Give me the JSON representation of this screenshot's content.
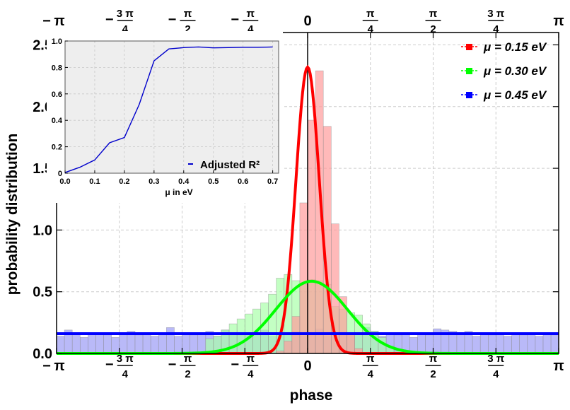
{
  "chart_data": [
    {
      "type": "bar",
      "title": "",
      "xlabel": "phase",
      "ylabel": "probability distribution",
      "xlim": [
        -3.1416,
        3.1416
      ],
      "ylim": [
        0,
        2.6
      ],
      "x_tick_values": [
        -3.1416,
        -2.3562,
        -1.5708,
        -0.7854,
        0,
        0.7854,
        1.5708,
        2.3562,
        3.1416
      ],
      "x_tick_labels": [
        {
          "sign": "−",
          "num": "π",
          "den": ""
        },
        {
          "sign": "−",
          "num": "3 π",
          "den": "4"
        },
        {
          "sign": "−",
          "num": "π",
          "den": "2"
        },
        {
          "sign": "−",
          "num": "π",
          "den": "4"
        },
        {
          "sign": "",
          "num": "0",
          "den": ""
        },
        {
          "sign": "",
          "num": "π",
          "den": "4"
        },
        {
          "sign": "",
          "num": "π",
          "den": "2"
        },
        {
          "sign": "",
          "num": "3 π",
          "den": "4"
        },
        {
          "sign": "",
          "num": "π",
          "den": ""
        }
      ],
      "y_ticks": [
        0,
        0.5,
        1.0,
        1.5,
        2.0,
        2.5
      ],
      "y_tick_labels": [
        "0.0",
        "0.5",
        "1.0",
        "1.5",
        "2.0",
        "2.5"
      ],
      "grid": true,
      "legend_position": "top-right",
      "bin_width": 0.0982,
      "series": [
        {
          "name": "μ = 0.15 eV",
          "color": "#ff0000",
          "fill": "#ff9b9b",
          "curve": {
            "kind": "gaussian",
            "mean": 0.0,
            "sigma": 0.146,
            "peak": 2.32
          },
          "hist_bin_start": -0.4909,
          "hist_values": [
            0.0,
            0.02,
            0.1,
            0.3,
            1.22,
            1.89,
            2.29,
            1.84,
            1.05,
            0.46,
            0.16,
            0.04
          ]
        },
        {
          "name": "μ = 0.30 eV",
          "color": "#00ff00",
          "fill": "#aaffaa",
          "curve": {
            "kind": "gaussian",
            "mean": 0.05,
            "sigma": 0.45,
            "peak": 0.585
          },
          "hist_bin_start": -1.2763,
          "hist_values": [
            0.12,
            0.14,
            0.19,
            0.24,
            0.28,
            0.32,
            0.36,
            0.41,
            0.48,
            0.61,
            0.64,
            0.59,
            0.56,
            0.6,
            0.59,
            0.56,
            0.38,
            0.36,
            0.33,
            0.31,
            0.24,
            0.18,
            0.13,
            0.06,
            0.02
          ]
        },
        {
          "name": "μ = 0.45 eV",
          "color": "#0000ff",
          "fill": "#9b9bf5",
          "curve": {
            "kind": "flat",
            "value": 0.16
          },
          "hist_bin_start": -3.1416,
          "hist_values": [
            0.14,
            0.19,
            0.16,
            0.13,
            0.17,
            0.16,
            0.15,
            0.13,
            0.16,
            0.18,
            0.15,
            0.17,
            0.14,
            0.16,
            0.21,
            0.14,
            0.17,
            0.15,
            0.16,
            0.18,
            0.14,
            0.19,
            0.16,
            0.15,
            0.17,
            0.15,
            0.19,
            0.14,
            0.17,
            0.15,
            0.18,
            0.14,
            0.16,
            0.2,
            0.14,
            0.17,
            0.15,
            0.16,
            0.17,
            0.21,
            0.18,
            0.14,
            0.16,
            0.15,
            0.17,
            0.13,
            0.16,
            0.15,
            0.2,
            0.19,
            0.18,
            0.16,
            0.18,
            0.14,
            0.16,
            0.15,
            0.17,
            0.14,
            0.16,
            0.15,
            0.17,
            0.14,
            0.16,
            0.15
          ]
        }
      ]
    },
    {
      "type": "line",
      "title": "",
      "xlabel": "μ in eV",
      "ylabel": "",
      "xlim": [
        0,
        0.72
      ],
      "ylim": [
        0,
        1.0
      ],
      "x_ticks": [
        0.0,
        0.1,
        0.2,
        0.3,
        0.4,
        0.5,
        0.6,
        0.7
      ],
      "x_tick_labels": [
        "0.0",
        "0.1",
        "0.2",
        "0.3",
        "0.4",
        "0.5",
        "0.6",
        "0.7"
      ],
      "y_ticks": [
        0,
        0.2,
        0.4,
        0.6,
        0.8,
        1.0
      ],
      "y_tick_labels": [
        "0",
        "0.2",
        "0.4",
        "0.6",
        "0.8",
        "1.0"
      ],
      "grid": true,
      "background": "#eeeeee",
      "legend_position": "bottom-right",
      "series": [
        {
          "name": "Adjusted R²",
          "color": "#0000cc",
          "x": [
            0.0,
            0.05,
            0.1,
            0.15,
            0.2,
            0.25,
            0.3,
            0.35,
            0.4,
            0.45,
            0.5,
            0.55,
            0.6,
            0.65,
            0.7
          ],
          "y": [
            0.005,
            0.045,
            0.1,
            0.23,
            0.27,
            0.52,
            0.85,
            0.94,
            0.95,
            0.955,
            0.948,
            0.95,
            0.952,
            0.952,
            0.955
          ]
        }
      ]
    }
  ]
}
